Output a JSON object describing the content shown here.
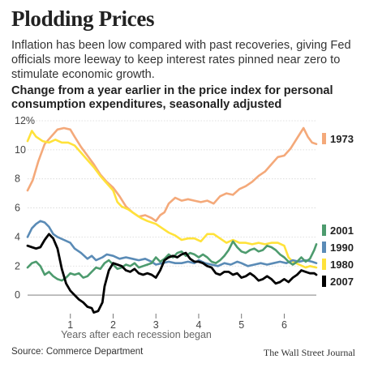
{
  "header": {
    "title": "Plodding Prices",
    "subtitle": "Inflation has been low compared with past recoveries, giving Fed officials more leeway to keep interest rates pinned near zero to stimulate economic growth.",
    "chart_heading": "Change from a year earlier in the price index for personal consumption expenditures, seasonally adjusted"
  },
  "footer": {
    "source": "Source: Commerce Department",
    "credit": "The Wall Street Journal"
  },
  "chart_data": {
    "type": "line",
    "title": "Change from a year earlier in the price index for personal consumption expenditures, seasonally adjusted",
    "xlabel": "Years after each recession began",
    "ylabel": "",
    "xlim": [
      0,
      6.75
    ],
    "ylim": [
      -1.5,
      12
    ],
    "x_ticks": [
      1,
      2,
      3,
      4,
      5,
      6
    ],
    "x_tick_labels": [
      "1",
      "2",
      "3",
      "4",
      "5",
      "6"
    ],
    "y_ticks": [
      0,
      2,
      4,
      6,
      8,
      10,
      12
    ],
    "y_tick_labels": [
      "0",
      "2",
      "4",
      "6",
      "8",
      "10",
      "12%"
    ],
    "grid": "horizontal",
    "legend_position": "right",
    "series": [
      {
        "name": "1973",
        "color": "#f4a97a",
        "bold": false,
        "points": [
          [
            0,
            7.2
          ],
          [
            0.12,
            7.9
          ],
          [
            0.25,
            9.2
          ],
          [
            0.4,
            10.4
          ],
          [
            0.55,
            10.9
          ],
          [
            0.7,
            11.4
          ],
          [
            0.85,
            11.5
          ],
          [
            1.0,
            11.4
          ],
          [
            1.1,
            10.9
          ],
          [
            1.25,
            10.2
          ],
          [
            1.4,
            9.6
          ],
          [
            1.55,
            9.0
          ],
          [
            1.7,
            8.3
          ],
          [
            1.85,
            7.8
          ],
          [
            2.0,
            7.4
          ],
          [
            2.15,
            6.8
          ],
          [
            2.3,
            6.1
          ],
          [
            2.45,
            5.7
          ],
          [
            2.6,
            5.4
          ],
          [
            2.75,
            5.5
          ],
          [
            2.9,
            5.3
          ],
          [
            3.0,
            5.1
          ],
          [
            3.1,
            5.5
          ],
          [
            3.2,
            5.7
          ],
          [
            3.3,
            6.3
          ],
          [
            3.45,
            6.7
          ],
          [
            3.6,
            6.5
          ],
          [
            3.75,
            6.6
          ],
          [
            3.9,
            6.5
          ],
          [
            4.05,
            6.4
          ],
          [
            4.2,
            6.5
          ],
          [
            4.35,
            6.3
          ],
          [
            4.5,
            6.8
          ],
          [
            4.65,
            7.0
          ],
          [
            4.8,
            6.9
          ],
          [
            4.95,
            7.3
          ],
          [
            5.1,
            7.5
          ],
          [
            5.25,
            7.8
          ],
          [
            5.4,
            8.2
          ],
          [
            5.55,
            8.5
          ],
          [
            5.7,
            9.0
          ],
          [
            5.85,
            9.5
          ],
          [
            6.0,
            9.6
          ],
          [
            6.15,
            10.1
          ],
          [
            6.3,
            10.8
          ],
          [
            6.45,
            11.5
          ],
          [
            6.55,
            10.9
          ],
          [
            6.65,
            10.5
          ],
          [
            6.75,
            10.4
          ]
        ]
      },
      {
        "name": "1980",
        "color": "#ffe23a",
        "bold": false,
        "points": [
          [
            0,
            10.6
          ],
          [
            0.1,
            11.3
          ],
          [
            0.2,
            10.9
          ],
          [
            0.35,
            10.6
          ],
          [
            0.5,
            10.5
          ],
          [
            0.65,
            10.7
          ],
          [
            0.8,
            10.5
          ],
          [
            0.95,
            10.5
          ],
          [
            1.1,
            10.3
          ],
          [
            1.25,
            9.8
          ],
          [
            1.4,
            9.3
          ],
          [
            1.55,
            8.8
          ],
          [
            1.7,
            8.2
          ],
          [
            1.85,
            7.7
          ],
          [
            2.0,
            7.2
          ],
          [
            2.1,
            6.4
          ],
          [
            2.2,
            6.1
          ],
          [
            2.35,
            5.9
          ],
          [
            2.5,
            5.6
          ],
          [
            2.65,
            5.3
          ],
          [
            2.8,
            5.1
          ],
          [
            3.0,
            4.9
          ],
          [
            3.15,
            4.6
          ],
          [
            3.3,
            4.3
          ],
          [
            3.45,
            4.1
          ],
          [
            3.6,
            3.8
          ],
          [
            3.75,
            3.9
          ],
          [
            3.9,
            3.9
          ],
          [
            4.05,
            3.7
          ],
          [
            4.2,
            4.2
          ],
          [
            4.35,
            4.2
          ],
          [
            4.5,
            3.9
          ],
          [
            4.65,
            3.6
          ],
          [
            4.8,
            3.8
          ],
          [
            4.95,
            3.6
          ],
          [
            5.1,
            3.6
          ],
          [
            5.25,
            3.5
          ],
          [
            5.4,
            3.6
          ],
          [
            5.55,
            3.5
          ],
          [
            5.7,
            3.6
          ],
          [
            5.85,
            3.6
          ],
          [
            6.0,
            3.4
          ],
          [
            6.1,
            2.6
          ],
          [
            6.2,
            2.3
          ],
          [
            6.35,
            2.1
          ],
          [
            6.5,
            1.9
          ],
          [
            6.6,
            2.0
          ],
          [
            6.75,
            1.9
          ]
        ]
      },
      {
        "name": "1990",
        "color": "#5a8bb6",
        "bold": false,
        "points": [
          [
            0,
            4.0
          ],
          [
            0.1,
            4.6
          ],
          [
            0.2,
            4.9
          ],
          [
            0.3,
            5.1
          ],
          [
            0.4,
            5.0
          ],
          [
            0.5,
            4.7
          ],
          [
            0.6,
            4.2
          ],
          [
            0.7,
            4.0
          ],
          [
            0.85,
            3.8
          ],
          [
            1.0,
            3.6
          ],
          [
            1.1,
            3.2
          ],
          [
            1.25,
            2.9
          ],
          [
            1.4,
            2.5
          ],
          [
            1.5,
            2.7
          ],
          [
            1.6,
            2.4
          ],
          [
            1.75,
            2.6
          ],
          [
            1.85,
            2.8
          ],
          [
            2.0,
            2.7
          ],
          [
            2.15,
            2.5
          ],
          [
            2.3,
            2.6
          ],
          [
            2.45,
            2.5
          ],
          [
            2.6,
            2.4
          ],
          [
            2.75,
            2.5
          ],
          [
            2.9,
            2.3
          ],
          [
            3.0,
            2.1
          ],
          [
            3.15,
            2.2
          ],
          [
            3.3,
            2.3
          ],
          [
            3.45,
            2.2
          ],
          [
            3.6,
            2.2
          ],
          [
            3.75,
            2.3
          ],
          [
            3.9,
            2.2
          ],
          [
            4.0,
            2.4
          ],
          [
            4.15,
            2.2
          ],
          [
            4.3,
            2.1
          ],
          [
            4.45,
            2.0
          ],
          [
            4.6,
            2.2
          ],
          [
            4.75,
            2.1
          ],
          [
            4.9,
            2.3
          ],
          [
            5.0,
            2.2
          ],
          [
            5.15,
            2.0
          ],
          [
            5.3,
            2.1
          ],
          [
            5.45,
            2.2
          ],
          [
            5.6,
            2.1
          ],
          [
            5.75,
            2.2
          ],
          [
            5.9,
            2.3
          ],
          [
            6.05,
            2.2
          ],
          [
            6.2,
            2.4
          ],
          [
            6.35,
            2.3
          ],
          [
            6.5,
            2.4
          ],
          [
            6.65,
            2.3
          ],
          [
            6.75,
            2.2
          ]
        ]
      },
      {
        "name": "2001",
        "color": "#4d9b6e",
        "bold": false,
        "points": [
          [
            0,
            1.9
          ],
          [
            0.1,
            2.2
          ],
          [
            0.2,
            2.3
          ],
          [
            0.3,
            2.0
          ],
          [
            0.4,
            1.4
          ],
          [
            0.5,
            1.6
          ],
          [
            0.6,
            1.3
          ],
          [
            0.7,
            1.1
          ],
          [
            0.8,
            1.0
          ],
          [
            0.9,
            1.2
          ],
          [
            1.0,
            1.5
          ],
          [
            1.1,
            1.4
          ],
          [
            1.2,
            1.5
          ],
          [
            1.3,
            1.2
          ],
          [
            1.4,
            1.3
          ],
          [
            1.5,
            1.6
          ],
          [
            1.6,
            1.9
          ],
          [
            1.7,
            1.8
          ],
          [
            1.8,
            2.2
          ],
          [
            1.9,
            2.4
          ],
          [
            2.0,
            2.1
          ],
          [
            2.1,
            1.8
          ],
          [
            2.2,
            1.9
          ],
          [
            2.3,
            2.1
          ],
          [
            2.4,
            2.0
          ],
          [
            2.5,
            2.2
          ],
          [
            2.6,
            1.9
          ],
          [
            2.7,
            2.0
          ],
          [
            2.8,
            2.1
          ],
          [
            2.9,
            2.2
          ],
          [
            3.0,
            2.6
          ],
          [
            3.1,
            2.3
          ],
          [
            3.2,
            2.5
          ],
          [
            3.3,
            2.8
          ],
          [
            3.4,
            2.6
          ],
          [
            3.5,
            2.9
          ],
          [
            3.6,
            3.0
          ],
          [
            3.7,
            2.7
          ],
          [
            3.8,
            2.9
          ],
          [
            3.9,
            2.8
          ],
          [
            4.0,
            2.6
          ],
          [
            4.1,
            2.8
          ],
          [
            4.2,
            2.6
          ],
          [
            4.3,
            2.3
          ],
          [
            4.4,
            2.2
          ],
          [
            4.5,
            2.4
          ],
          [
            4.6,
            2.7
          ],
          [
            4.7,
            3.1
          ],
          [
            4.8,
            3.7
          ],
          [
            4.9,
            3.3
          ],
          [
            5.0,
            3.0
          ],
          [
            5.1,
            2.9
          ],
          [
            5.2,
            3.1
          ],
          [
            5.3,
            3.2
          ],
          [
            5.4,
            3.0
          ],
          [
            5.5,
            3.1
          ],
          [
            5.6,
            3.4
          ],
          [
            5.7,
            3.3
          ],
          [
            5.8,
            3.1
          ],
          [
            5.9,
            2.8
          ],
          [
            6.0,
            2.6
          ],
          [
            6.1,
            2.3
          ],
          [
            6.2,
            2.1
          ],
          [
            6.3,
            2.3
          ],
          [
            6.4,
            2.6
          ],
          [
            6.5,
            2.3
          ],
          [
            6.6,
            2.5
          ],
          [
            6.7,
            3.1
          ],
          [
            6.75,
            3.5
          ]
        ]
      },
      {
        "name": "2007",
        "color": "#000000",
        "bold": true,
        "points": [
          [
            0,
            3.4
          ],
          [
            0.1,
            3.3
          ],
          [
            0.2,
            3.2
          ],
          [
            0.3,
            3.3
          ],
          [
            0.4,
            3.8
          ],
          [
            0.5,
            4.2
          ],
          [
            0.6,
            3.9
          ],
          [
            0.7,
            3.2
          ],
          [
            0.8,
            1.8
          ],
          [
            0.9,
            0.8
          ],
          [
            1.0,
            0.3
          ],
          [
            1.1,
            0.0
          ],
          [
            1.2,
            -0.3
          ],
          [
            1.3,
            -0.5
          ],
          [
            1.4,
            -0.8
          ],
          [
            1.5,
            -0.9
          ],
          [
            1.55,
            -1.2
          ],
          [
            1.65,
            -1.1
          ],
          [
            1.75,
            -0.5
          ],
          [
            1.8,
            0.6
          ],
          [
            1.9,
            1.7
          ],
          [
            2.0,
            2.2
          ],
          [
            2.1,
            2.1
          ],
          [
            2.2,
            2.0
          ],
          [
            2.3,
            1.7
          ],
          [
            2.4,
            1.6
          ],
          [
            2.5,
            1.8
          ],
          [
            2.6,
            1.5
          ],
          [
            2.7,
            1.4
          ],
          [
            2.8,
            1.5
          ],
          [
            2.9,
            1.4
          ],
          [
            3.0,
            1.2
          ],
          [
            3.1,
            1.7
          ],
          [
            3.2,
            2.4
          ],
          [
            3.3,
            2.6
          ],
          [
            3.4,
            2.7
          ],
          [
            3.5,
            2.6
          ],
          [
            3.6,
            2.8
          ],
          [
            3.7,
            2.9
          ],
          [
            3.8,
            2.5
          ],
          [
            3.9,
            2.3
          ],
          [
            4.0,
            2.3
          ],
          [
            4.1,
            2.2
          ],
          [
            4.2,
            2.0
          ],
          [
            4.3,
            1.9
          ],
          [
            4.4,
            1.5
          ],
          [
            4.5,
            1.4
          ],
          [
            4.6,
            1.6
          ],
          [
            4.7,
            1.6
          ],
          [
            4.8,
            1.4
          ],
          [
            4.9,
            1.5
          ],
          [
            5.0,
            1.2
          ],
          [
            5.1,
            1.3
          ],
          [
            5.2,
            1.5
          ],
          [
            5.3,
            1.3
          ],
          [
            5.4,
            1.0
          ],
          [
            5.5,
            1.1
          ],
          [
            5.6,
            1.3
          ],
          [
            5.7,
            1.1
          ],
          [
            5.8,
            0.8
          ],
          [
            5.9,
            0.9
          ],
          [
            6.0,
            1.1
          ],
          [
            6.1,
            0.9
          ],
          [
            6.2,
            1.2
          ],
          [
            6.3,
            1.4
          ],
          [
            6.4,
            1.7
          ],
          [
            6.5,
            1.6
          ],
          [
            6.6,
            1.5
          ],
          [
            6.7,
            1.5
          ],
          [
            6.75,
            1.4
          ]
        ]
      }
    ]
  }
}
